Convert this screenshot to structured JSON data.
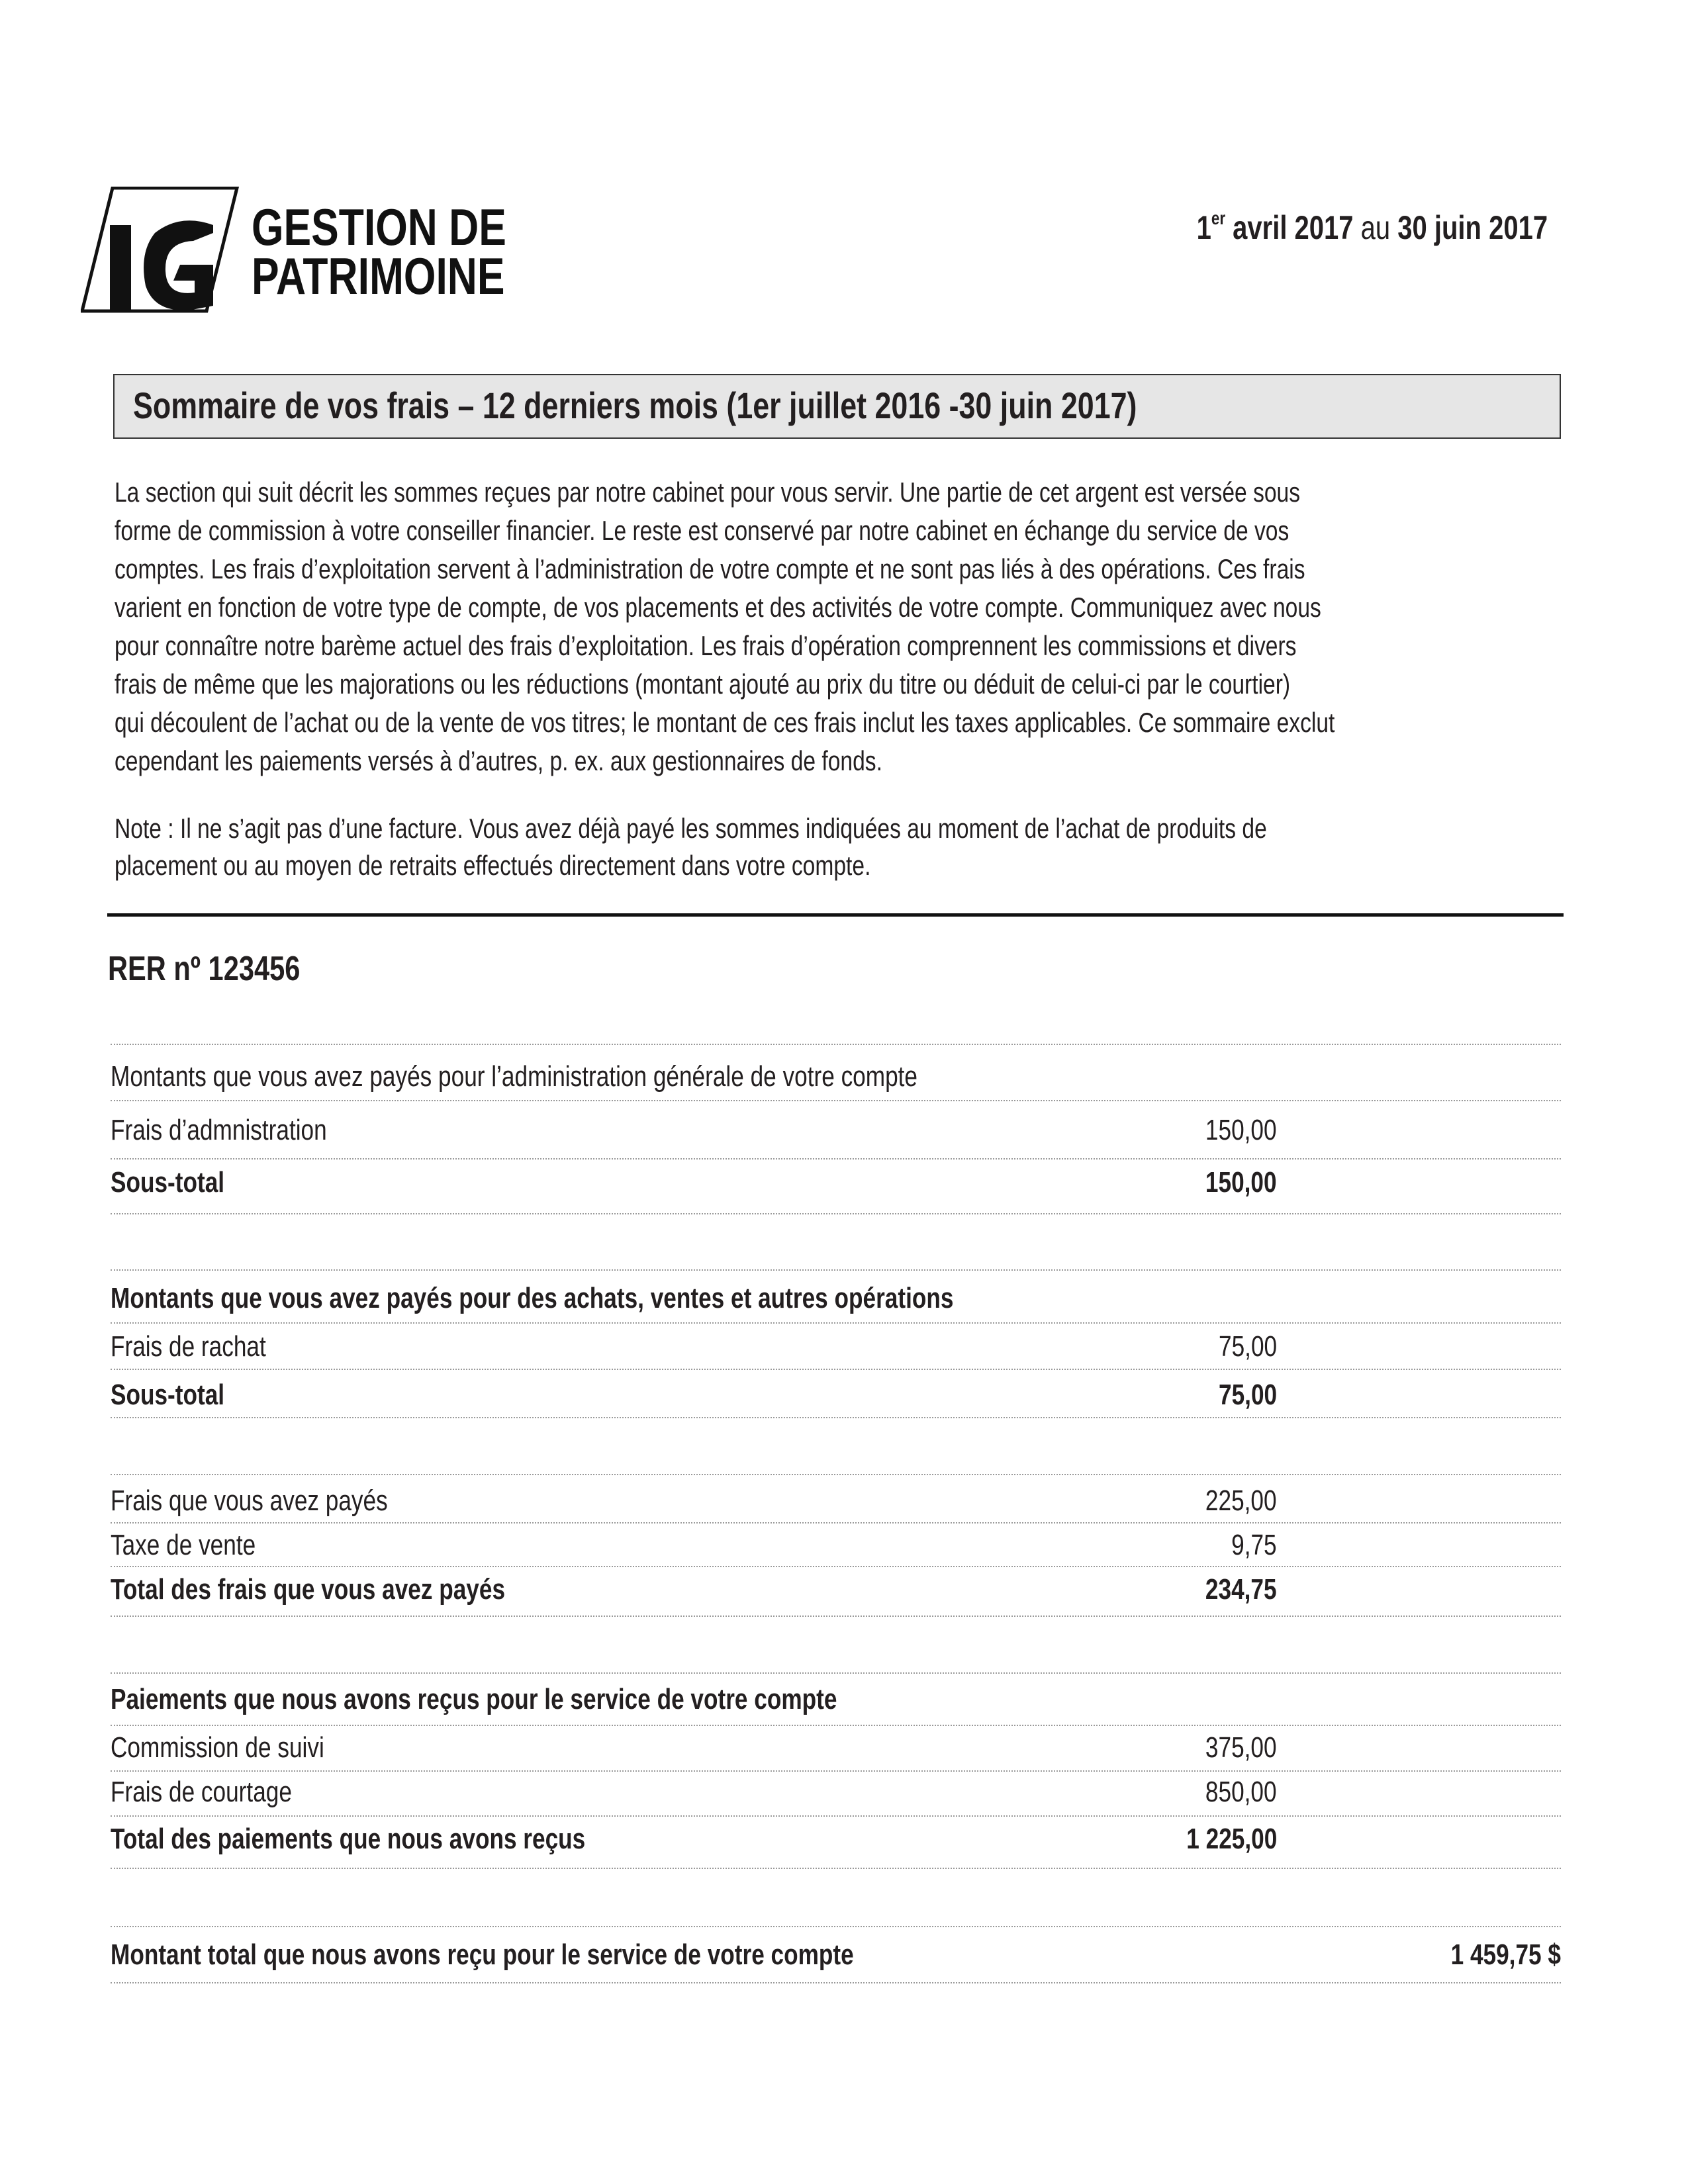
{
  "header": {
    "brand_line1": "GESTION DE",
    "brand_line2": "PATRIMOINE",
    "logo_letters": "IG",
    "date_day": "1",
    "date_sup": "er",
    "date_start": " avril 2017",
    "date_connector": " au ",
    "date_end": "30 juin 2017"
  },
  "section_title": "Sommaire de vos frais – 12 derniers mois (1er juillet 2016 -30 juin 2017)",
  "intro_lines": [
    "La section qui suit décrit les sommes reçues par notre cabinet pour vous servir. Une partie de cet argent est versée sous",
    "forme de commission à votre conseiller financier. Le reste est conservé par notre cabinet en échange du service de vos",
    "comptes. Les frais d’exploitation servent à l’administration de votre compte et ne sont pas liés à des opérations. Ces frais",
    "varient en fonction de votre type de compte, de vos placements et des activités de votre compte. Communiquez avec nous",
    "pour connaître notre barème actuel des frais d’exploitation. Les frais d’opération comprennent les commissions et divers",
    "frais de même que les majorations ou les réductions (montant ajouté au prix du titre ou déduit de celui-ci par le courtier)",
    "qui découlent de l’achat ou de la vente de vos titres; le montant de ces frais inclut les taxes applicables. Ce sommaire exclut",
    "cependant les paiements versés à d’autres, p. ex. aux gestionnaires de fonds."
  ],
  "note_lines": [
    "Note : Il ne s’agit pas d’une facture. Vous avez déjà payé les sommes indiquées au moment de l’achat de produits de",
    "placement ou au moyen de retraits effectués directement dans votre compte."
  ],
  "account_title": "RER nº 123456",
  "rows": [
    {
      "label": "Montants que vous avez payés pour l’administration générale de votre compte",
      "amount": ""
    },
    {
      "label": "Frais d’admnistration",
      "amount": "150,00"
    },
    {
      "label": "Sous-total",
      "amount": "150,00"
    },
    {
      "label": "Montants que vous avez payés pour des achats, ventes et autres opérations",
      "amount": ""
    },
    {
      "label": "Frais de rachat",
      "amount": "75,00"
    },
    {
      "label": "Sous-total",
      "amount": "75,00"
    },
    {
      "label": "Frais que vous avez payés",
      "amount": "225,00"
    },
    {
      "label": "Taxe de vente",
      "amount": "9,75"
    },
    {
      "label": "Total des frais que vous avez payés",
      "amount": "234,75"
    },
    {
      "label": "Paiements que nous avons reçus pour le service de votre compte",
      "amount": ""
    },
    {
      "label": "Commission de suivi",
      "amount": "375,00"
    },
    {
      "label": "Frais de courtage",
      "amount": "850,00"
    },
    {
      "label": "Total des paiements que nous avons reçus",
      "amount": "1 225,00"
    },
    {
      "label": "Montant total que nous avons reçu pour le service de votre compte",
      "amount": "1 459,75 $"
    }
  ]
}
